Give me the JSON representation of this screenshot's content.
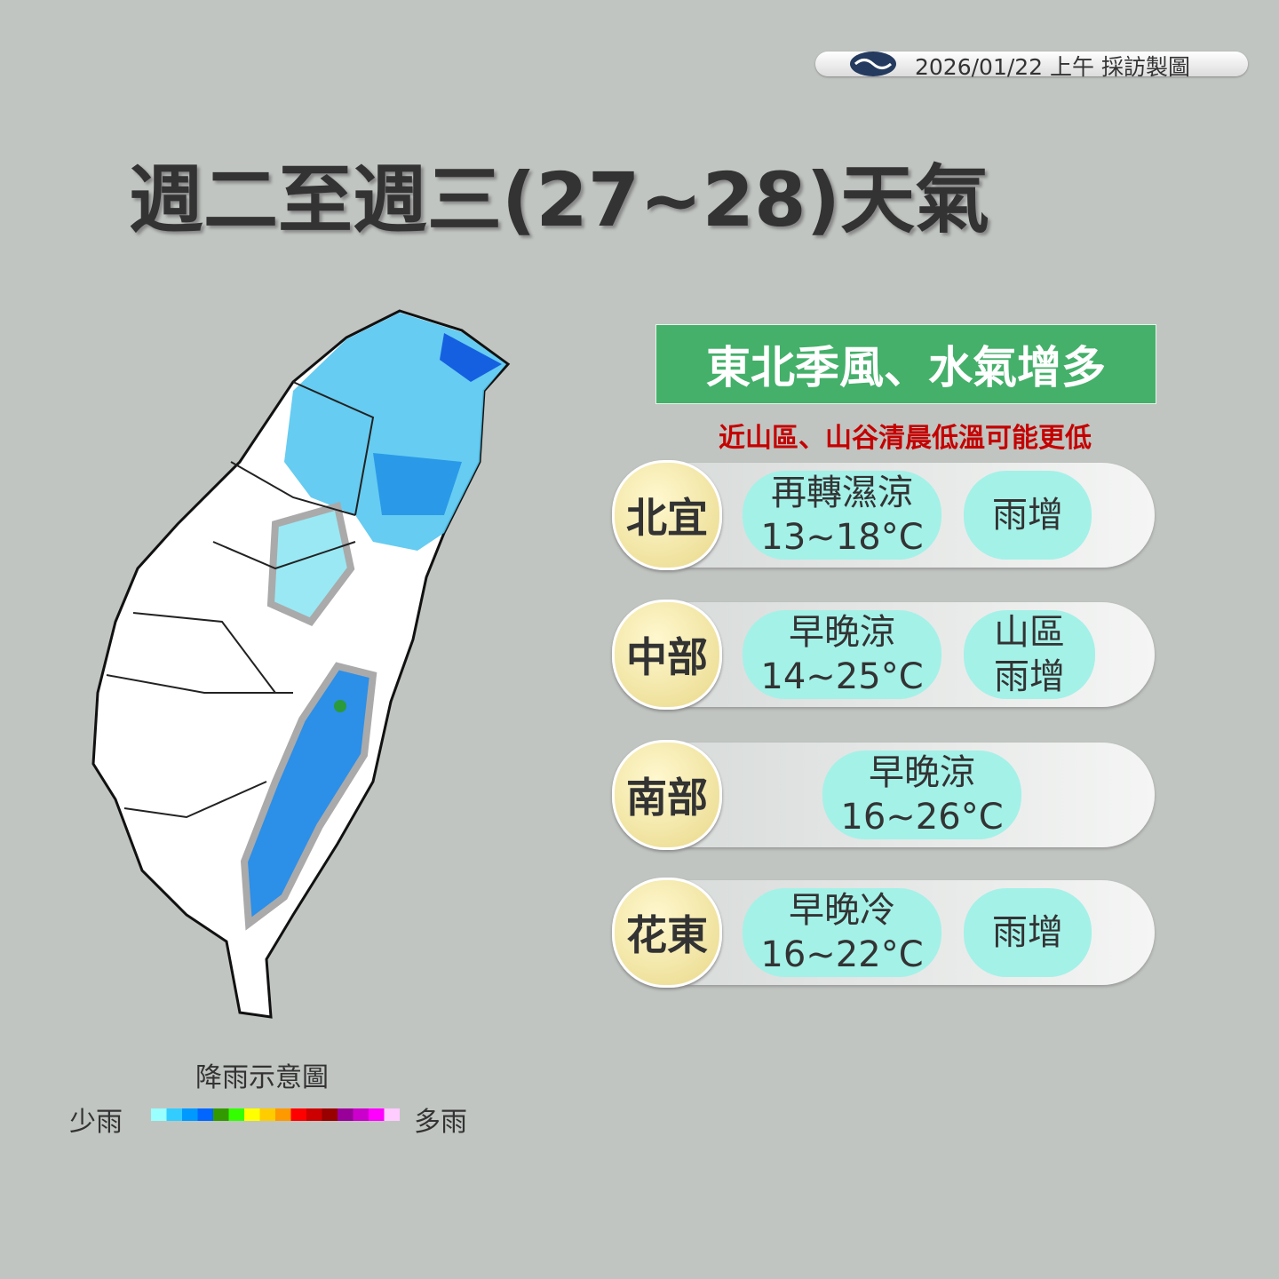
{
  "header": {
    "date_stamp": "2026/01/22 上午 採訪製圖"
  },
  "title": "週二至週三(27~28)天氣",
  "banner": "東北季風、水氣增多",
  "note": "近山區、山谷清晨低溫可能更低",
  "regions": [
    {
      "name": "北宜",
      "main": [
        "再轉濕涼",
        "13~18°C"
      ],
      "extra": [
        "雨增"
      ]
    },
    {
      "name": "中部",
      "main": [
        "早晚涼",
        "14~25°C"
      ],
      "extra": [
        "山區",
        "雨增"
      ]
    },
    {
      "name": "南部",
      "main": [
        "早晚涼",
        "16~26°C"
      ]
    },
    {
      "name": "花東",
      "main": [
        "早晚冷",
        "16~22°C"
      ],
      "extra": [
        "雨增"
      ]
    }
  ],
  "legend": {
    "caption": "降雨示意圖",
    "low": "少雨",
    "high": "多雨",
    "colors": [
      "#99ffff",
      "#33ccff",
      "#0099ff",
      "#0066ff",
      "#339900",
      "#33ff00",
      "#ffff00",
      "#ffcc00",
      "#ff9900",
      "#ff0000",
      "#cc0000",
      "#990000",
      "#990099",
      "#cc00cc",
      "#ff00ff",
      "#ffccff"
    ]
  }
}
